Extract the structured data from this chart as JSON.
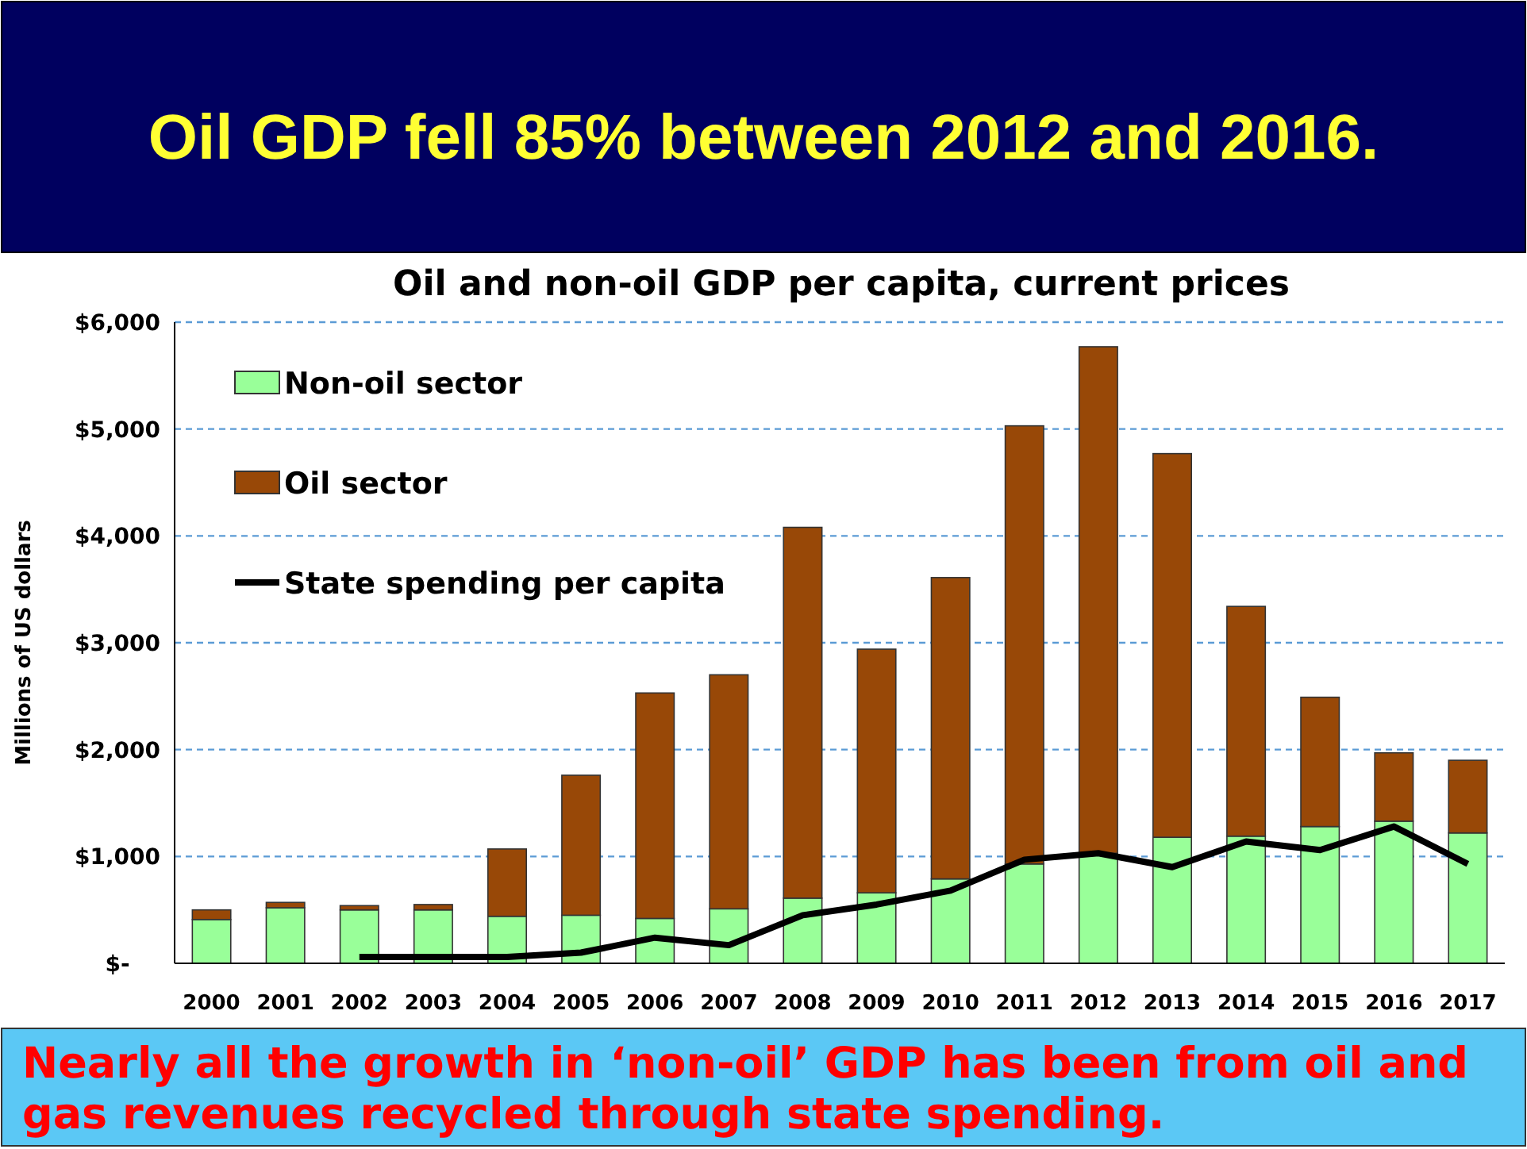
{
  "chart_data": {
    "type": "bar",
    "stacked": true,
    "title": "Oil GDP fell 85% between 2012 and 2016.",
    "subtitle": "Oil and non-oil GDP per capita, current prices",
    "ylabel": "Millions of US dollars",
    "categories": [
      "2000",
      "2001",
      "2002",
      "2003",
      "2004",
      "2005",
      "2006",
      "2007",
      "2008",
      "2009",
      "2010",
      "2011",
      "2012",
      "2013",
      "2014",
      "2015",
      "2016",
      "2017"
    ],
    "series": [
      {
        "name": "Non-oil sector",
        "color": "#99ff99",
        "values": [
          410,
          520,
          500,
          500,
          440,
          450,
          420,
          510,
          610,
          660,
          790,
          930,
          1030,
          1180,
          1190,
          1280,
          1330,
          1220
        ]
      },
      {
        "name": "Oil sector",
        "color": "#984807",
        "values": [
          90,
          50,
          40,
          50,
          630,
          1310,
          2110,
          2190,
          3470,
          2280,
          2820,
          4100,
          4740,
          3590,
          2150,
          1210,
          640,
          680
        ]
      },
      {
        "name": "State spending per capita",
        "type": "line",
        "color": "#000000",
        "values": [
          null,
          null,
          60,
          60,
          60,
          100,
          240,
          170,
          450,
          550,
          680,
          970,
          1030,
          900,
          1140,
          1060,
          1280,
          930
        ]
      }
    ],
    "ylim": [
      0,
      6000
    ],
    "yticks": [
      {
        "value": 0,
        "label": "$-"
      },
      {
        "value": 1000,
        "label": "$1,000"
      },
      {
        "value": 2000,
        "label": "$2,000"
      },
      {
        "value": 3000,
        "label": "$3,000"
      },
      {
        "value": 4000,
        "label": "$4,000"
      },
      {
        "value": 5000,
        "label": "$5,000"
      },
      {
        "value": 6000,
        "label": "$6,000"
      }
    ],
    "grid": "y",
    "legend": "top left",
    "annotations": [
      "Nearly all the growth in ‘non-oil’ GDP has been from oil and gas revenues recycled through state spending."
    ]
  }
}
